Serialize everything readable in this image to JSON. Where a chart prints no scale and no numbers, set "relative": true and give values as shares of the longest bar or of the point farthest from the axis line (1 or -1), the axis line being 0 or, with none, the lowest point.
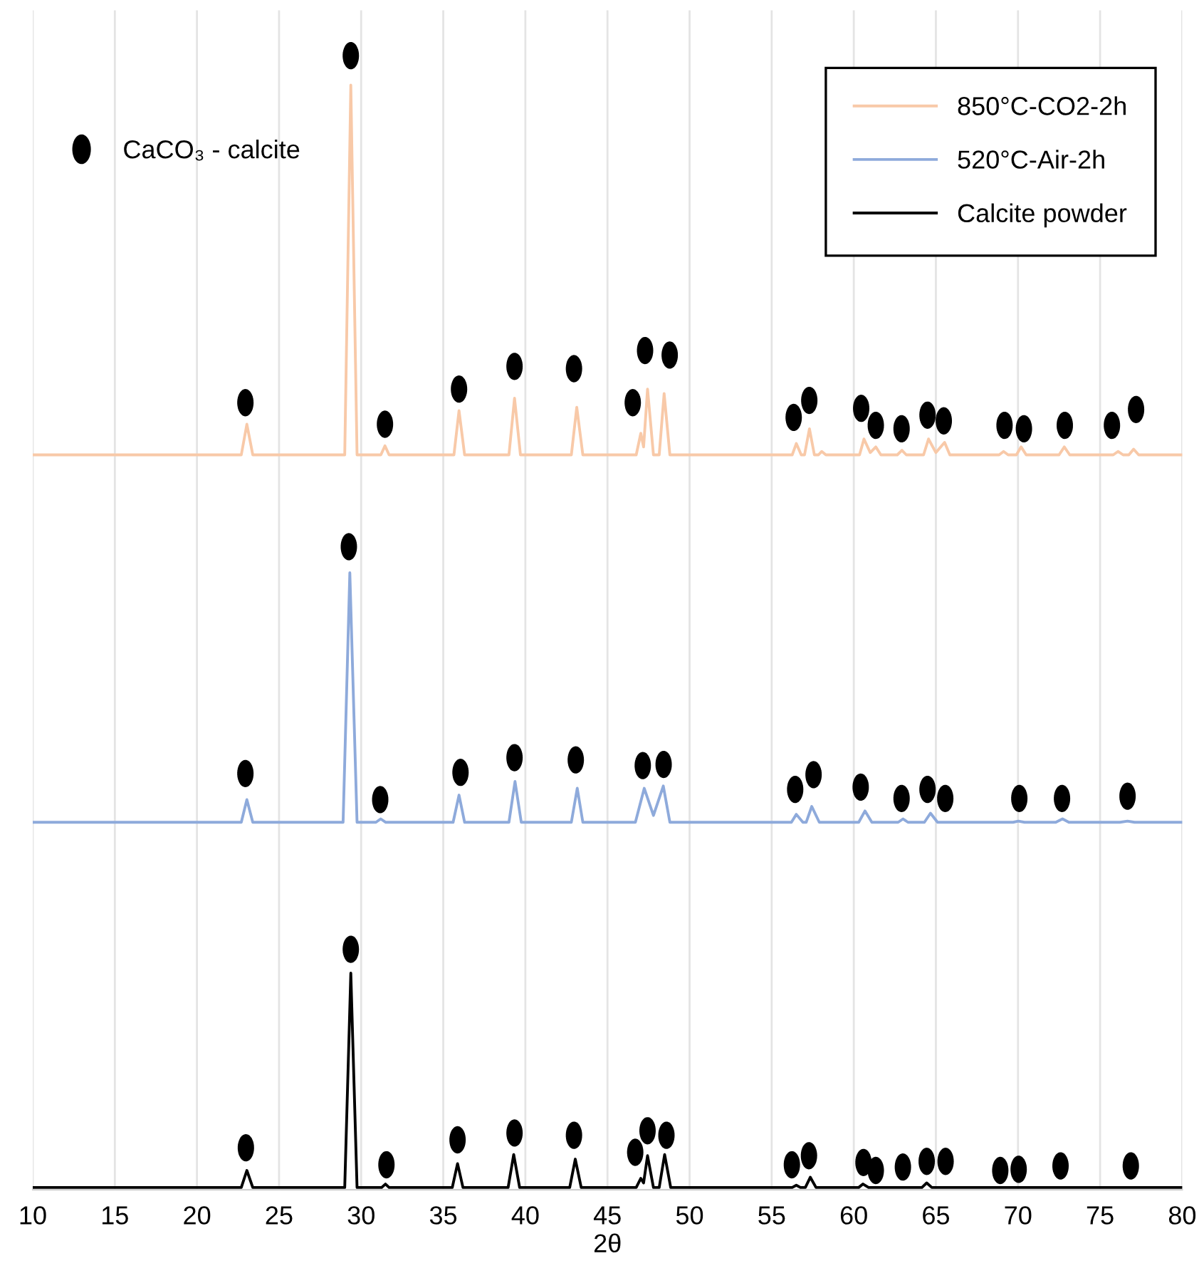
{
  "chart_data": {
    "type": "line",
    "relative": true,
    "xlabel": "2θ",
    "xlim": [
      10,
      80
    ],
    "xticks": [
      10,
      15,
      20,
      25,
      30,
      35,
      40,
      45,
      50,
      55,
      60,
      65,
      70,
      75,
      80
    ],
    "grid": "x",
    "legend": "top right",
    "line_style": "solid",
    "series": [
      {
        "name": "850°C-CO2-2h",
        "color": "#f8c9a8",
        "x": [
          10,
          22.7,
          23.04,
          23.4,
          29.0,
          29.37,
          29.75,
          31.2,
          31.45,
          31.7,
          35.65,
          35.96,
          36.3,
          39.0,
          39.34,
          39.7,
          42.8,
          43.13,
          43.5,
          46.75,
          47.03,
          47.2,
          47.44,
          47.8,
          48.15,
          48.45,
          48.8,
          56.25,
          56.5,
          56.8,
          57.0,
          57.3,
          57.6,
          57.85,
          58.05,
          58.3,
          60.35,
          60.62,
          61.0,
          61.34,
          61.65,
          62.65,
          62.93,
          63.2,
          64.25,
          64.55,
          65.0,
          65.53,
          65.85,
          68.85,
          69.12,
          69.4,
          69.9,
          70.19,
          70.5,
          72.5,
          72.82,
          73.15,
          75.8,
          76.09,
          76.4,
          76.75,
          77.04,
          77.35,
          80
        ],
        "values": [
          0.648,
          0.648,
          0.675,
          0.648,
          0.648,
          0.974,
          0.648,
          0.648,
          0.656,
          0.648,
          0.648,
          0.687,
          0.648,
          0.648,
          0.698,
          0.648,
          0.648,
          0.69,
          0.648,
          0.648,
          0.667,
          0.655,
          0.706,
          0.648,
          0.648,
          0.702,
          0.648,
          0.648,
          0.658,
          0.648,
          0.648,
          0.671,
          0.648,
          0.648,
          0.651,
          0.648,
          0.648,
          0.662,
          0.65,
          0.655,
          0.648,
          0.648,
          0.652,
          0.648,
          0.648,
          0.662,
          0.65,
          0.659,
          0.648,
          0.648,
          0.651,
          0.648,
          0.648,
          0.655,
          0.648,
          0.648,
          0.655,
          0.648,
          0.648,
          0.651,
          0.648,
          0.648,
          0.653,
          0.648,
          0.648
        ]
      },
      {
        "name": "520°C-Air-2h",
        "color": "#8eaadb",
        "x": [
          10,
          22.7,
          23.04,
          23.4,
          28.9,
          29.31,
          29.75,
          30.9,
          31.19,
          31.5,
          35.6,
          35.96,
          36.3,
          39.0,
          39.37,
          39.75,
          42.8,
          43.16,
          43.5,
          46.7,
          47.24,
          47.8,
          48.4,
          48.8,
          56.2,
          56.5,
          56.9,
          57.1,
          57.44,
          57.9,
          60.3,
          60.68,
          61.1,
          62.7,
          63.0,
          63.3,
          64.3,
          64.67,
          65.1,
          69.7,
          70.02,
          70.4,
          72.3,
          72.71,
          73.1,
          76.2,
          76.67,
          77.1,
          80
        ],
        "values": [
          0.324,
          0.324,
          0.344,
          0.324,
          0.324,
          0.544,
          0.324,
          0.324,
          0.327,
          0.324,
          0.324,
          0.348,
          0.324,
          0.324,
          0.36,
          0.324,
          0.324,
          0.354,
          0.324,
          0.324,
          0.354,
          0.33,
          0.356,
          0.324,
          0.324,
          0.331,
          0.324,
          0.324,
          0.338,
          0.324,
          0.324,
          0.334,
          0.324,
          0.324,
          0.327,
          0.324,
          0.324,
          0.332,
          0.324,
          0.324,
          0.325,
          0.324,
          0.324,
          0.327,
          0.324,
          0.324,
          0.325,
          0.324,
          0.324
        ]
      },
      {
        "name": "Calcite powder",
        "color": "#000000",
        "x": [
          10,
          22.7,
          23.04,
          23.4,
          29.0,
          29.37,
          29.75,
          31.25,
          31.48,
          31.7,
          35.55,
          35.87,
          36.2,
          38.95,
          39.29,
          39.65,
          42.7,
          43.04,
          43.4,
          46.75,
          47.03,
          47.2,
          47.44,
          47.8,
          48.15,
          48.48,
          48.85,
          56.25,
          56.5,
          56.75,
          57.05,
          57.35,
          57.7,
          60.3,
          60.56,
          60.9,
          64.15,
          64.44,
          64.75,
          80
        ],
        "values": [
          0.002,
          0.002,
          0.017,
          0.002,
          0.002,
          0.191,
          0.002,
          0.002,
          0.005,
          0.002,
          0.002,
          0.023,
          0.002,
          0.002,
          0.031,
          0.002,
          0.002,
          0.027,
          0.002,
          0.002,
          0.01,
          0.006,
          0.03,
          0.002,
          0.002,
          0.031,
          0.002,
          0.002,
          0.004,
          0.002,
          0.002,
          0.011,
          0.002,
          0.002,
          0.005,
          0.002,
          0.002,
          0.006,
          0.002,
          0.002
        ]
      },
      {
        "name": "CaCO₃ - calcite",
        "type": "scatter",
        "marker": "circle",
        "color": "#000000",
        "x": [
          22.95,
          29.37,
          31.45,
          35.96,
          39.34,
          42.96,
          46.54,
          47.29,
          48.79,
          56.34,
          57.29,
          60.45,
          61.34,
          62.91,
          64.49,
          65.48,
          69.18,
          70.36,
          72.85,
          75.72,
          77.19,
          22.95,
          29.25,
          31.16,
          36.05,
          39.34,
          43.07,
          47.15,
          48.42,
          56.43,
          57.55,
          60.42,
          62.91,
          64.49,
          65.57,
          70.08,
          72.68,
          76.67,
          22.98,
          29.37,
          31.54,
          35.87,
          39.34,
          42.96,
          46.69,
          47.44,
          48.59,
          56.23,
          57.27,
          60.59,
          61.34,
          62.99,
          64.44,
          65.59,
          68.92,
          70.04,
          72.59,
          76.87
        ],
        "values": [
          0.694,
          1.0,
          0.675,
          0.706,
          0.726,
          0.724,
          0.694,
          0.74,
          0.736,
          0.681,
          0.696,
          0.689,
          0.674,
          0.671,
          0.683,
          0.678,
          0.674,
          0.671,
          0.674,
          0.674,
          0.688,
          0.367,
          0.567,
          0.344,
          0.368,
          0.381,
          0.379,
          0.374,
          0.375,
          0.353,
          0.366,
          0.355,
          0.345,
          0.353,
          0.345,
          0.345,
          0.345,
          0.347,
          0.037,
          0.212,
          0.022,
          0.044,
          0.05,
          0.048,
          0.033,
          0.052,
          0.048,
          0.022,
          0.03,
          0.024,
          0.017,
          0.02,
          0.025,
          0.025,
          0.017,
          0.018,
          0.021,
          0.021
        ]
      }
    ]
  }
}
